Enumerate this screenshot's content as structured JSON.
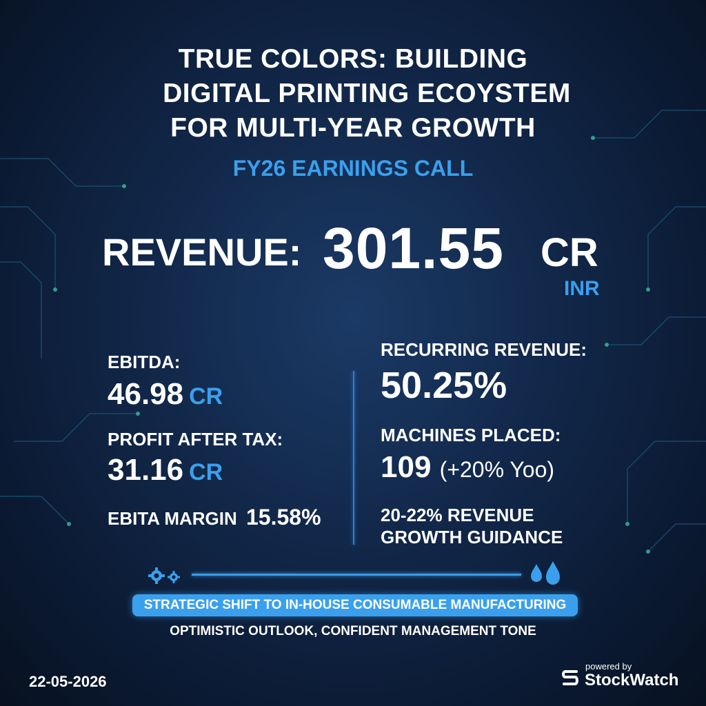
{
  "title": {
    "line1": "TRUE COLORS: BUILDING",
    "line2": "DIGITAL PRINTING ECOYSTEM",
    "line3": "FOR MULTI-YEAR GROWTH"
  },
  "subtitle": "FY26 EARNINGS CALL",
  "revenue": {
    "label": "REVENUE:",
    "value": "301.55",
    "unit": "CR",
    "currency": "INR"
  },
  "left_metrics": {
    "ebitda_label": "EBITDA:",
    "ebitda_value": "46.98",
    "ebitda_unit": "CR",
    "pat_label": "PROFIT AFTER TAX:",
    "pat_value": "31.16",
    "pat_unit": "CR",
    "margin_label": "EBITA MARGIN",
    "margin_value": "15.58%"
  },
  "right_metrics": {
    "recurring_label": "RECURRING REVENUE:",
    "recurring_value": "50.25%",
    "machines_label": "MACHINES PLACED:",
    "machines_value": "109",
    "machines_change": "(+20% Yoo)",
    "guidance_line1": "20-22% REVENUE",
    "guidance_line2": "GROWTH GUIDANCE"
  },
  "icons": {
    "left": "gears-icon",
    "right": "ink-drops-icon",
    "brand": "stockwatch-logo-icon"
  },
  "banner": "STRATEGIC SHIFT TO IN-HOUSE CONSUMABLE MANUFACTURING",
  "tone": "OPTIMISTIC OUTLOOK, CONFIDENT MANAGEMENT TONE",
  "footer": {
    "date": "22-05-2026",
    "powered_by": "powered by",
    "brand": "StockWatch"
  },
  "colors": {
    "accent": "#3aa0ee",
    "background": "#12284a",
    "text": "#ffffff"
  }
}
